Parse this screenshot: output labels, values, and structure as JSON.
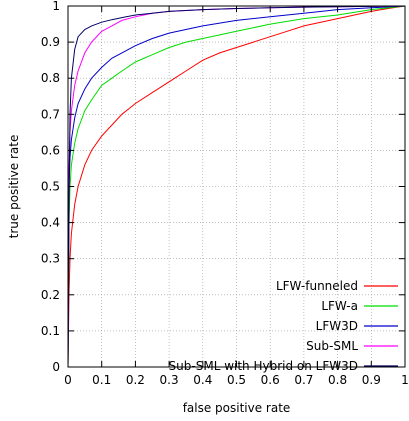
{
  "chart_data": {
    "type": "line",
    "xlabel": "false positive rate",
    "ylabel": "true positive rate",
    "xlim": [
      0,
      1
    ],
    "ylim": [
      0,
      1
    ],
    "x_ticks": [
      "0",
      "0.1",
      "0.2",
      "0.3",
      "0.4",
      "0.5",
      "0.6",
      "0.7",
      "0.8",
      "0.9",
      "1"
    ],
    "y_ticks": [
      "0",
      "0.1",
      "0.2",
      "0.3",
      "0.4",
      "0.5",
      "0.6",
      "0.7",
      "0.8",
      "0.9",
      "1"
    ],
    "grid": true,
    "legend_position": "bottom-right",
    "series": [
      {
        "name": "LFW-funneled",
        "color": "#ff0000",
        "x": [
          0,
          0.003,
          0.006,
          0.01,
          0.02,
          0.03,
          0.05,
          0.07,
          0.1,
          0.13,
          0.16,
          0.2,
          0.25,
          0.3,
          0.35,
          0.4,
          0.45,
          0.5,
          0.55,
          0.6,
          0.65,
          0.7,
          0.75,
          0.8,
          0.85,
          0.9,
          0.95,
          1.0
        ],
        "y": [
          0,
          0.2,
          0.3,
          0.37,
          0.45,
          0.5,
          0.56,
          0.6,
          0.64,
          0.67,
          0.7,
          0.73,
          0.76,
          0.79,
          0.82,
          0.85,
          0.87,
          0.885,
          0.9,
          0.915,
          0.93,
          0.945,
          0.955,
          0.965,
          0.975,
          0.985,
          0.993,
          1.0
        ]
      },
      {
        "name": "LFW-a",
        "color": "#00dd00",
        "x": [
          0,
          0.003,
          0.006,
          0.01,
          0.02,
          0.03,
          0.05,
          0.07,
          0.1,
          0.13,
          0.16,
          0.2,
          0.25,
          0.3,
          0.35,
          0.4,
          0.45,
          0.5,
          0.6,
          0.7,
          0.8,
          0.9,
          1.0
        ],
        "y": [
          0,
          0.4,
          0.5,
          0.56,
          0.62,
          0.66,
          0.71,
          0.74,
          0.78,
          0.8,
          0.82,
          0.845,
          0.865,
          0.885,
          0.9,
          0.91,
          0.92,
          0.93,
          0.95,
          0.965,
          0.975,
          0.99,
          1.0
        ]
      },
      {
        "name": "LFW3D",
        "color": "#0000cc",
        "x": [
          0,
          0.003,
          0.006,
          0.01,
          0.02,
          0.03,
          0.05,
          0.07,
          0.1,
          0.13,
          0.16,
          0.2,
          0.25,
          0.3,
          0.35,
          0.4,
          0.5,
          0.6,
          0.7,
          0.8,
          0.9,
          1.0
        ],
        "y": [
          0,
          0.5,
          0.58,
          0.63,
          0.69,
          0.73,
          0.77,
          0.8,
          0.83,
          0.855,
          0.87,
          0.89,
          0.91,
          0.925,
          0.935,
          0.945,
          0.96,
          0.97,
          0.98,
          0.99,
          0.995,
          1.0
        ]
      },
      {
        "name": "Sub-SML",
        "color": "#ff00ff",
        "x": [
          0,
          0.003,
          0.006,
          0.01,
          0.02,
          0.03,
          0.05,
          0.07,
          0.1,
          0.13,
          0.16,
          0.2,
          0.25,
          0.3,
          0.4,
          0.5,
          0.6,
          0.7,
          0.8,
          0.9,
          1.0
        ],
        "y": [
          0,
          0.55,
          0.65,
          0.71,
          0.78,
          0.82,
          0.87,
          0.9,
          0.93,
          0.945,
          0.96,
          0.97,
          0.98,
          0.985,
          0.99,
          0.993,
          0.995,
          0.997,
          0.998,
          0.999,
          1.0
        ]
      },
      {
        "name": "Sub-SML with Hybrid on LFW3D",
        "color": "#000066",
        "x": [
          0,
          0.003,
          0.006,
          0.01,
          0.02,
          0.03,
          0.05,
          0.07,
          0.1,
          0.13,
          0.16,
          0.2,
          0.25,
          0.3,
          0.4,
          0.5,
          0.6,
          0.7,
          0.8,
          0.9,
          1.0
        ],
        "y": [
          0,
          0.45,
          0.7,
          0.8,
          0.88,
          0.915,
          0.935,
          0.945,
          0.955,
          0.962,
          0.968,
          0.975,
          0.98,
          0.985,
          0.99,
          0.993,
          0.995,
          0.997,
          0.998,
          0.999,
          1.0
        ]
      }
    ]
  }
}
